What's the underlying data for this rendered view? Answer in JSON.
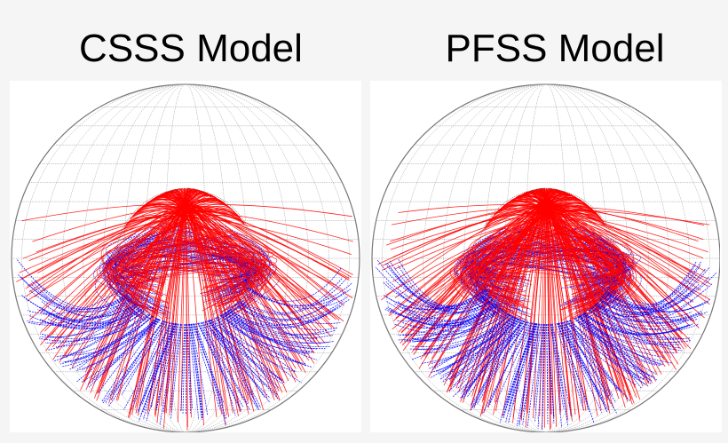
{
  "panels": [
    {
      "title": "CSSS Model",
      "open_field_north_color": "#ff0000",
      "open_field_south_color": "#0000ff"
    },
    {
      "title": "PFSS Model",
      "open_field_north_color": "#ff0000",
      "open_field_south_color": "#0000ff"
    }
  ],
  "colors": {
    "positive": "#ff0000",
    "negative": "#0000ff",
    "grid": "#999999",
    "background": "#f5f5f5"
  }
}
